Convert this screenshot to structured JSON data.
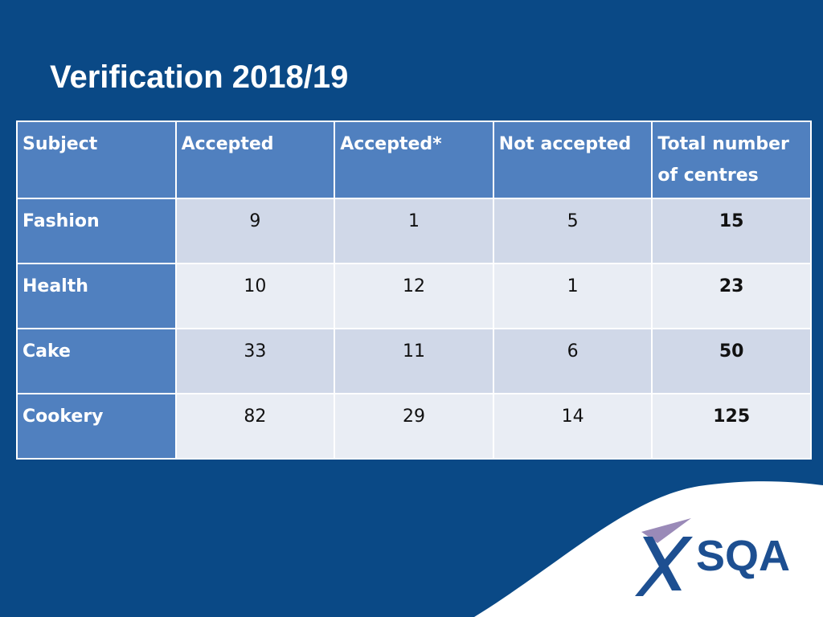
{
  "title": "Verification 2018/19",
  "table": {
    "header": [
      "Subject",
      "Accepted",
      "Accepted*",
      "Not accepted",
      "Total number of centres"
    ],
    "rows": [
      [
        "Fashion",
        "9",
        "1",
        "5",
        "15"
      ],
      [
        "Health",
        "10",
        "12",
        "1",
        "23"
      ],
      [
        "Cake",
        "33",
        "11",
        "6",
        "50"
      ],
      [
        "Cookery",
        "82",
        "29",
        "14",
        "125"
      ]
    ]
  },
  "logo": {
    "text": "SQA"
  }
}
